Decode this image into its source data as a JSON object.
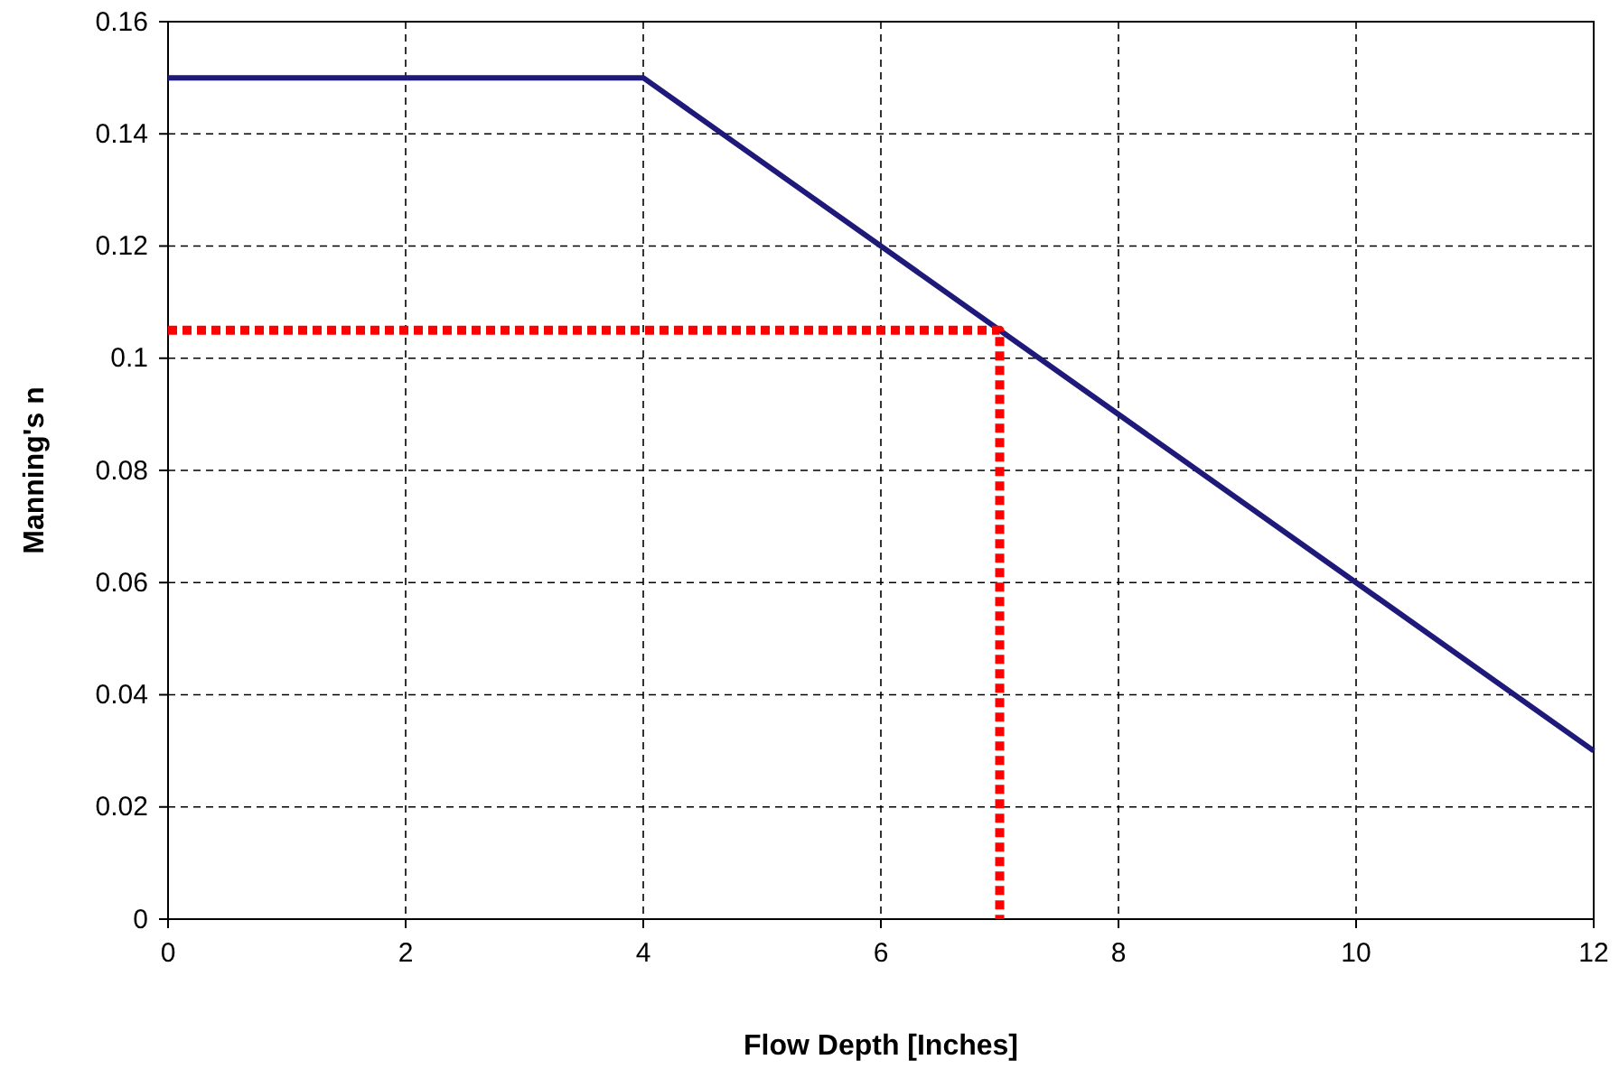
{
  "chart_data": {
    "type": "line",
    "xlabel": "Flow Depth [Inches]",
    "ylabel": "Manning's n",
    "xlim": [
      0,
      12
    ],
    "xticks": [
      0,
      2,
      4,
      6,
      8,
      10,
      12
    ],
    "ylim": [
      0,
      0.16
    ],
    "yticks": [
      0,
      0.02,
      0.04,
      0.06,
      0.08,
      0.1,
      0.12,
      0.14,
      0.16
    ],
    "grid": true,
    "marker": "none",
    "series": [
      {
        "x": [
          0,
          4,
          12
        ],
        "values": [
          0.15,
          0.15,
          0.03
        ],
        "color": "#1f1a7a",
        "line_style": "solid"
      },
      {
        "x": [
          0,
          7,
          7
        ],
        "values": [
          0.105,
          0.105,
          0
        ],
        "color": "#ff0000",
        "line_style": "dotted"
      }
    ]
  }
}
